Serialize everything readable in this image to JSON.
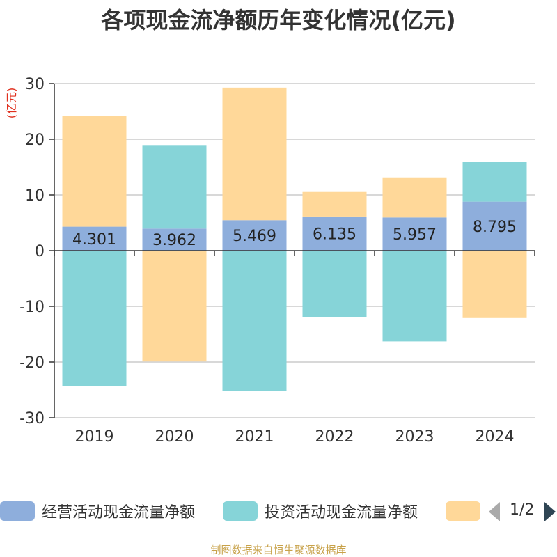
{
  "title": "各项现金流净额历年变化情况(亿元)",
  "chart_data": {
    "type": "bar",
    "stacked": true,
    "categories": [
      "2019",
      "2020",
      "2021",
      "2022",
      "2023",
      "2024"
    ],
    "ylabel": "(亿元)",
    "ylim": [
      -30,
      30
    ],
    "yticks": [
      -30,
      -20,
      -10,
      0,
      10,
      20,
      30
    ],
    "grid": true,
    "series": [
      {
        "name": "经营活动现金流量净额",
        "color": "#8eaedc",
        "values": [
          4.301,
          3.962,
          5.469,
          6.135,
          5.957,
          8.795
        ],
        "show_labels": true
      },
      {
        "name": "投资活动现金流量净额",
        "color": "#86d4d8",
        "values": [
          -24.3,
          15.0,
          -25.2,
          -12.0,
          -16.3,
          7.1
        ],
        "show_labels": false
      },
      {
        "name": "",
        "color": "#ffd899",
        "values": [
          19.9,
          -19.9,
          23.8,
          4.4,
          7.2,
          -12.1
        ],
        "show_labels": false
      }
    ],
    "legend_position": "bottom"
  },
  "legend": {
    "items": [
      {
        "label": "经营活动现金流量净额",
        "color": "#8eaedc"
      },
      {
        "label": "投资活动现金流量净额",
        "color": "#86d4d8"
      },
      {
        "label": "",
        "color": "#ffd899"
      }
    ],
    "page": "1/2"
  },
  "source": "制图数据来自恒生聚源数据库"
}
